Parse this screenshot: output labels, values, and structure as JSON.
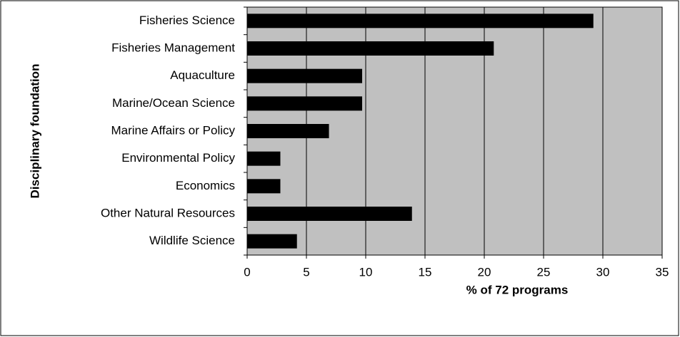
{
  "chart_data": {
    "type": "bar",
    "orientation": "horizontal",
    "categories": [
      "Fisheries Science",
      "Fisheries Management",
      "Aquaculture",
      "Marine/Ocean Science",
      "Marine Affairs or Policy",
      "Environmental Policy",
      "Economics",
      "Other Natural Resources",
      "Wildlife Science"
    ],
    "values": [
      29.2,
      20.8,
      9.7,
      9.7,
      6.9,
      2.8,
      2.8,
      13.9,
      4.2
    ],
    "color": "#000000",
    "plot_background": "#c0c0c0",
    "xlabel": "% of 72 programs",
    "ylabel": "Disciplinary foundation",
    "xlim": [
      0,
      35
    ],
    "xticks": [
      0,
      5,
      10,
      15,
      20,
      25,
      30,
      35
    ],
    "grid": true
  }
}
